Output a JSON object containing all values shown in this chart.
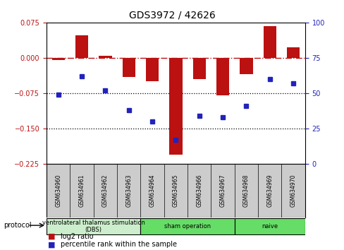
{
  "title": "GDS3972 / 42626",
  "samples": [
    "GSM634960",
    "GSM634961",
    "GSM634962",
    "GSM634963",
    "GSM634964",
    "GSM634965",
    "GSM634966",
    "GSM634967",
    "GSM634968",
    "GSM634969",
    "GSM634970"
  ],
  "log2_ratio": [
    -0.005,
    0.048,
    0.005,
    -0.04,
    -0.05,
    -0.205,
    -0.045,
    -0.08,
    -0.035,
    0.068,
    0.022
  ],
  "percentile_rank": [
    49,
    62,
    52,
    38,
    30,
    17,
    34,
    33,
    41,
    60,
    57
  ],
  "bar_color": "#bb1111",
  "dot_color": "#2222bb",
  "ylim_left": [
    -0.225,
    0.075
  ],
  "ylim_right": [
    0,
    100
  ],
  "yticks_left": [
    0.075,
    0,
    -0.075,
    -0.15,
    -0.225
  ],
  "yticks_right": [
    100,
    75,
    50,
    25,
    0
  ],
  "dotted_lines": [
    -0.075,
    -0.15
  ],
  "protocol_groups": [
    {
      "label": "ventrolateral thalamus stimulation\n(DBS)",
      "start": 0,
      "end": 3,
      "color": "#cceecc"
    },
    {
      "label": "sham operation",
      "start": 4,
      "end": 7,
      "color": "#66dd66"
    },
    {
      "label": "naive",
      "start": 8,
      "end": 10,
      "color": "#66dd66"
    }
  ],
  "legend_red_label": "log2 ratio",
  "legend_blue_label": "percentile rank within the sample",
  "protocol_label": "protocol",
  "background_color": "#ffffff",
  "box_color": "#cccccc",
  "title_fontsize": 10
}
